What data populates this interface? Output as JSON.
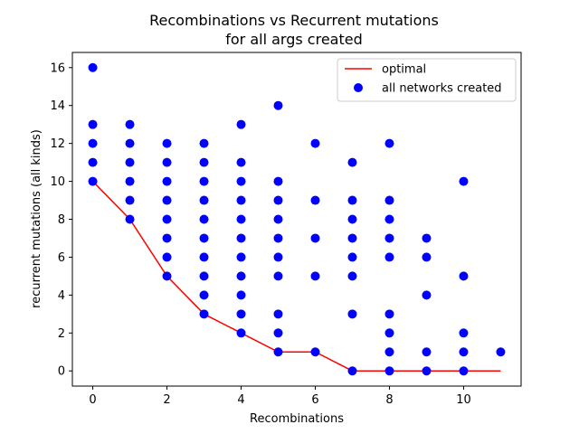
{
  "chart_data": {
    "type": "scatter",
    "title": "Recombinations vs Recurrent mutations",
    "subtitle": "for all args created",
    "xlabel": "Recombinations",
    "ylabel": "recurrent mutations (all kinds)",
    "xlim": [
      -0.55,
      11.55
    ],
    "ylim": [
      -0.8,
      16.8
    ],
    "xticks": [
      0,
      2,
      4,
      6,
      8,
      10
    ],
    "yticks": [
      0,
      2,
      4,
      6,
      8,
      10,
      12,
      14,
      16
    ],
    "grid": false,
    "legend_position": "top-right",
    "series": [
      {
        "name": "optimal",
        "kind": "line",
        "color": "#ff0000",
        "points": [
          [
            0,
            10
          ],
          [
            1,
            8
          ],
          [
            2,
            5
          ],
          [
            3,
            3
          ],
          [
            4,
            2
          ],
          [
            5,
            1
          ],
          [
            6,
            1
          ],
          [
            7,
            0
          ],
          [
            8,
            0
          ],
          [
            9,
            0
          ],
          [
            10,
            0
          ],
          [
            11,
            0
          ]
        ]
      },
      {
        "name": "all networks created",
        "kind": "scatter",
        "color": "#0000ff",
        "points": [
          [
            0,
            16
          ],
          [
            0,
            13
          ],
          [
            0,
            12
          ],
          [
            0,
            11
          ],
          [
            0,
            10
          ],
          [
            1,
            13
          ],
          [
            1,
            12
          ],
          [
            1,
            11
          ],
          [
            1,
            10
          ],
          [
            1,
            9
          ],
          [
            1,
            8
          ],
          [
            2,
            12
          ],
          [
            2,
            11
          ],
          [
            2,
            10
          ],
          [
            2,
            9
          ],
          [
            2,
            8
          ],
          [
            2,
            7
          ],
          [
            2,
            6
          ],
          [
            2,
            5
          ],
          [
            3,
            12
          ],
          [
            3,
            11
          ],
          [
            3,
            10
          ],
          [
            3,
            9
          ],
          [
            3,
            8
          ],
          [
            3,
            7
          ],
          [
            3,
            6
          ],
          [
            3,
            5
          ],
          [
            3,
            4
          ],
          [
            3,
            3
          ],
          [
            4,
            13
          ],
          [
            4,
            11
          ],
          [
            4,
            10
          ],
          [
            4,
            9
          ],
          [
            4,
            8
          ],
          [
            4,
            7
          ],
          [
            4,
            6
          ],
          [
            4,
            5
          ],
          [
            4,
            4
          ],
          [
            4,
            3
          ],
          [
            4,
            2
          ],
          [
            5,
            14
          ],
          [
            5,
            10
          ],
          [
            5,
            9
          ],
          [
            5,
            8
          ],
          [
            5,
            7
          ],
          [
            5,
            6
          ],
          [
            5,
            5
          ],
          [
            5,
            3
          ],
          [
            5,
            2
          ],
          [
            5,
            1
          ],
          [
            6,
            12
          ],
          [
            6,
            9
          ],
          [
            6,
            7
          ],
          [
            6,
            5
          ],
          [
            6,
            1
          ],
          [
            7,
            11
          ],
          [
            7,
            9
          ],
          [
            7,
            8
          ],
          [
            7,
            7
          ],
          [
            7,
            6
          ],
          [
            7,
            5
          ],
          [
            7,
            3
          ],
          [
            7,
            0
          ],
          [
            8,
            12
          ],
          [
            8,
            9
          ],
          [
            8,
            8
          ],
          [
            8,
            7
          ],
          [
            8,
            6
          ],
          [
            8,
            3
          ],
          [
            8,
            2
          ],
          [
            8,
            1
          ],
          [
            8,
            0
          ],
          [
            9,
            7
          ],
          [
            9,
            6
          ],
          [
            9,
            4
          ],
          [
            9,
            1
          ],
          [
            9,
            0
          ],
          [
            10,
            10
          ],
          [
            10,
            5
          ],
          [
            10,
            2
          ],
          [
            10,
            1
          ],
          [
            10,
            0
          ],
          [
            11,
            1
          ]
        ]
      }
    ]
  }
}
